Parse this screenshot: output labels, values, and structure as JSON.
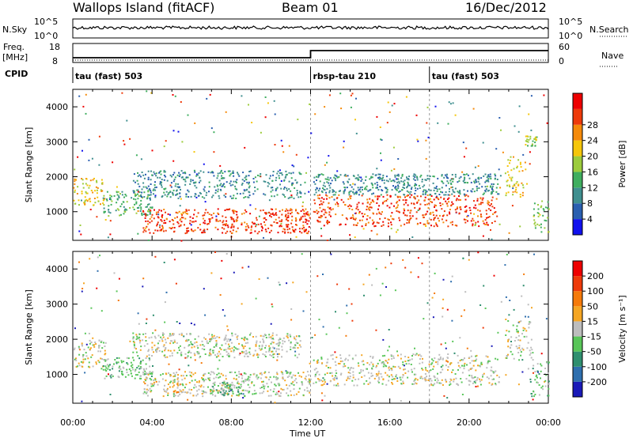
{
  "header": {
    "station": "Wallops Island (fitACF)",
    "beam": "Beam 01",
    "date": "16/Dec/2012"
  },
  "nsky": {
    "label": "N.Sky",
    "tick_top": "10^5",
    "tick_bottom": "10^0",
    "right_label": "N.Search",
    "right_tick_top": "10^5",
    "right_tick_bottom": "10^0"
  },
  "freq": {
    "label": "Freq.",
    "unit": "[MHz]",
    "tick_top": "18",
    "tick_bottom": "8",
    "right_label": "Nave",
    "right_tick_top": "60",
    "right_tick_bottom": "0",
    "cpid_label": "CPID"
  },
  "cpid_segments": [
    {
      "label": "tau (fast) 503",
      "start_hour": 0
    },
    {
      "label": "rbsp-tau 210",
      "start_hour": 12
    },
    {
      "label": "tau (fast) 503",
      "start_hour": 18
    }
  ],
  "power_colorbar": {
    "title": "Power [dB]",
    "ticks": [
      "4",
      "8",
      "12",
      "16",
      "20",
      "24",
      "28"
    ],
    "colors": [
      "#1111ee",
      "#2a5fb0",
      "#3f8f8f",
      "#3fae5f",
      "#9ccc3c",
      "#f5c60a",
      "#f58a0a",
      "#ee3a0a",
      "#ee0000"
    ]
  },
  "velocity_colorbar": {
    "title": "Velocity [m s⁻¹]",
    "ticks": [
      "200",
      "100",
      "50",
      "15",
      "-15",
      "-50",
      "-100",
      "-200"
    ],
    "colors": [
      "#1a1ab8",
      "#2f6fae",
      "#2f8f6f",
      "#59c659",
      "#bdbdbd",
      "#f5a623",
      "#f57a0a",
      "#ee3a0a",
      "#ee0000"
    ]
  },
  "chart_data": [
    {
      "type": "heatmap",
      "title": "Power",
      "xlabel": "Time UT",
      "ylabel": "Slant Range [km]",
      "xlim": [
        0,
        24
      ],
      "ylim": [
        180,
        4500
      ],
      "x_ticks": [
        "00:00",
        "04:00",
        "08:00",
        "12:00",
        "16:00",
        "20:00",
        "00:00"
      ],
      "y_ticks": [
        1000,
        2000,
        3000,
        4000
      ],
      "bands": [
        {
          "t_start": 0.0,
          "t_end": 1.6,
          "r_low": 1200,
          "r_high": 2000,
          "level": 5
        },
        {
          "t_start": 1.5,
          "t_end": 4.0,
          "r_low": 900,
          "r_high": 1600,
          "level": 3
        },
        {
          "t_start": 3.5,
          "t_end": 12.0,
          "r_low": 400,
          "r_high": 1100,
          "level": 7
        },
        {
          "t_start": 3.0,
          "t_end": 11.5,
          "r_low": 1400,
          "r_high": 2200,
          "level": 2
        },
        {
          "t_start": 12.1,
          "t_end": 21.5,
          "r_low": 600,
          "r_high": 1500,
          "level": 7
        },
        {
          "t_start": 12.1,
          "t_end": 21.5,
          "r_low": 1500,
          "r_high": 2100,
          "level": 2
        },
        {
          "t_start": 21.8,
          "t_end": 23.0,
          "r_low": 1400,
          "r_high": 2600,
          "level": 5
        },
        {
          "t_start": 22.8,
          "t_end": 23.4,
          "r_low": 2900,
          "r_high": 3200,
          "level": 4
        },
        {
          "t_start": 23.2,
          "t_end": 24.0,
          "r_low": 400,
          "r_high": 1400,
          "level": 4
        }
      ]
    },
    {
      "type": "heatmap",
      "title": "Velocity",
      "xlabel": "Time UT",
      "ylabel": "Slant Range [km]",
      "xlim": [
        0,
        24
      ],
      "ylim": [
        180,
        4500
      ],
      "x_ticks": [
        "00:00",
        "04:00",
        "08:00",
        "12:00",
        "16:00",
        "20:00",
        "00:00"
      ],
      "y_ticks": [
        1000,
        2000,
        3000,
        4000
      ],
      "bands": [
        {
          "t_start": 0.0,
          "t_end": 1.6,
          "r_low": 1200,
          "r_high": 2000,
          "level": 4
        },
        {
          "t_start": 1.5,
          "t_end": 4.0,
          "r_low": 900,
          "r_high": 1500,
          "level": 3
        },
        {
          "t_start": 3.5,
          "t_end": 12.0,
          "r_low": 400,
          "r_high": 1100,
          "level": 4
        },
        {
          "t_start": 7.0,
          "t_end": 8.5,
          "r_low": 400,
          "r_high": 800,
          "level": 3
        },
        {
          "t_start": 5.0,
          "t_end": 5.4,
          "r_low": 400,
          "r_high": 800,
          "level": 5
        },
        {
          "t_start": 3.0,
          "t_end": 11.5,
          "r_low": 1500,
          "r_high": 2200,
          "level": 4
        },
        {
          "t_start": 12.1,
          "t_end": 21.5,
          "r_low": 700,
          "r_high": 1600,
          "level": 4
        },
        {
          "t_start": 21.8,
          "t_end": 23.2,
          "r_low": 1400,
          "r_high": 2600,
          "level": 4
        },
        {
          "t_start": 23.0,
          "t_end": 24.0,
          "r_low": 400,
          "r_high": 1400,
          "level": 3
        }
      ]
    }
  ]
}
